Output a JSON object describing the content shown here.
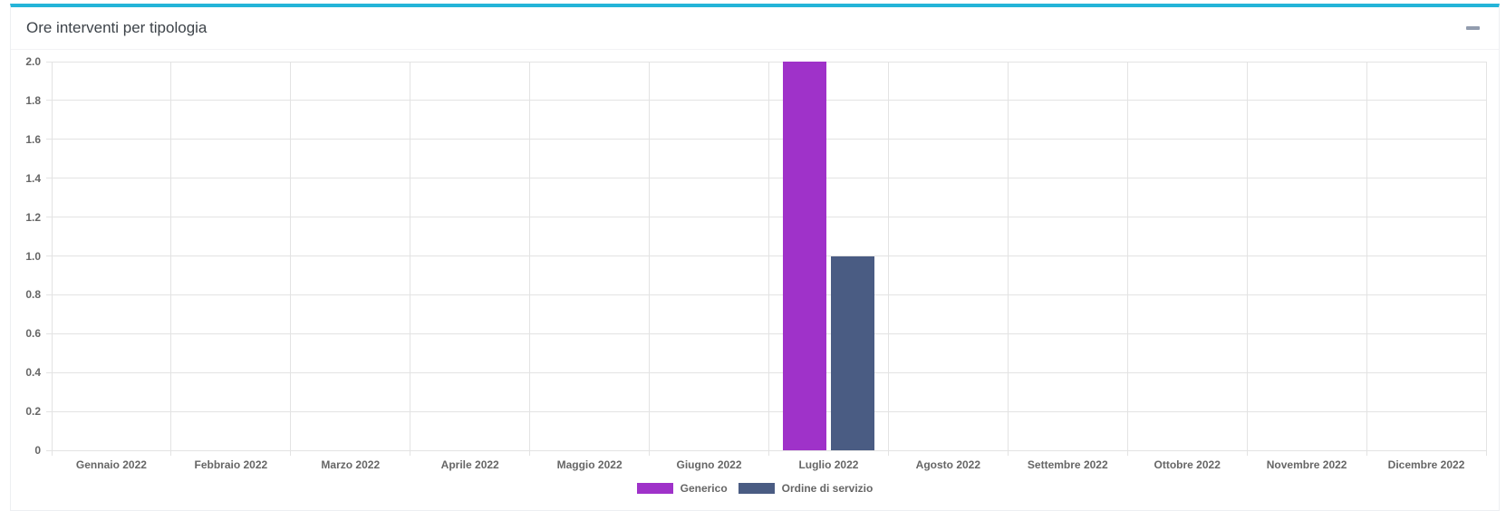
{
  "panel": {
    "title": "Ore interventi per tipologia",
    "collapse_icon": "minus-icon"
  },
  "colors": {
    "accent_top_border": "#25b4d8",
    "grid": "#e3e3e3",
    "axis_text": "#666666",
    "title_text": "#3d4349",
    "generico": "#9f32c9",
    "ordine_di_servizio": "#4a5c83"
  },
  "chart_data": {
    "type": "bar",
    "title": "Ore interventi per tipologia",
    "xlabel": "",
    "ylabel": "",
    "categories": [
      "Gennaio 2022",
      "Febbraio 2022",
      "Marzo 2022",
      "Aprile 2022",
      "Maggio 2022",
      "Giugno 2022",
      "Luglio 2022",
      "Agosto 2022",
      "Settembre 2022",
      "Ottobre 2022",
      "Novembre 2022",
      "Dicembre 2022"
    ],
    "series": [
      {
        "name": "Generico",
        "color": "#9f32c9",
        "values": [
          0,
          0,
          0,
          0,
          0,
          0,
          2,
          0,
          0,
          0,
          0,
          0
        ]
      },
      {
        "name": "Ordine di servizio",
        "color": "#4a5c83",
        "values": [
          0,
          0,
          0,
          0,
          0,
          0,
          1,
          0,
          0,
          0,
          0,
          0
        ]
      }
    ],
    "ylim": [
      0,
      2
    ],
    "ytick_step": 0.2,
    "ytick_labels": [
      "0",
      "0.2",
      "0.4",
      "0.6",
      "0.8",
      "1.0",
      "1.2",
      "1.4",
      "1.6",
      "1.8",
      "2.0"
    ],
    "grid": true,
    "legend_position": "bottom"
  }
}
